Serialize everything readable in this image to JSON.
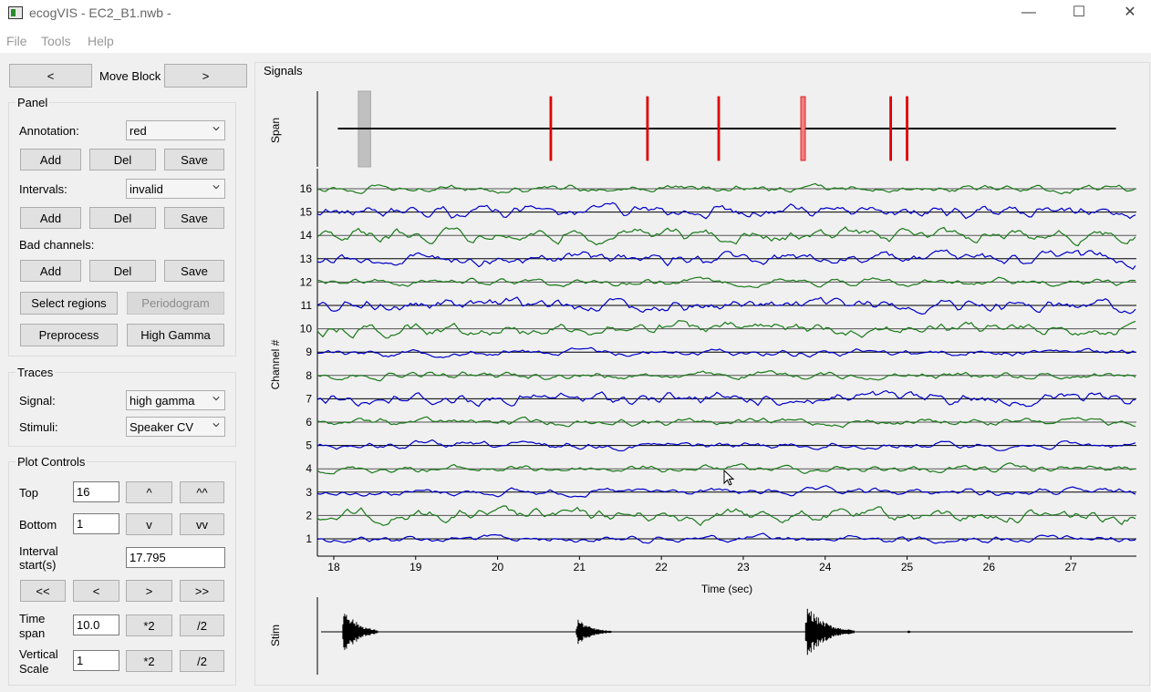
{
  "window": {
    "title": "ecogVIS - EC2_B1.nwb -",
    "minimize": "—",
    "maximize": "☐",
    "close": "✕"
  },
  "menu": [
    "File",
    "Tools",
    "Help"
  ],
  "nav": {
    "prev": "<",
    "label": "Move Block",
    "next": ">"
  },
  "panel": {
    "title": "Panel",
    "annotation_label": "Annotation:",
    "annotation_value": "red",
    "intervals_label": "Intervals:",
    "intervals_value": "invalid",
    "bad_channels_label": "Bad channels:",
    "add": "Add",
    "del": "Del",
    "save": "Save",
    "select_regions": "Select regions",
    "periodogram": "Periodogram",
    "preprocess": "Preprocess",
    "high_gamma": "High Gamma"
  },
  "traces": {
    "title": "Traces",
    "signal_label": "Signal:",
    "signal_value": "high gamma",
    "stimuli_label": "Stimuli:",
    "stimuli_value": "Speaker CV"
  },
  "plot_controls": {
    "title": "Plot Controls",
    "top_label": "Top",
    "top_value": "16",
    "up": "^",
    "up2": "^^",
    "bottom_label": "Bottom",
    "bottom_value": "1",
    "down": "v",
    "down2": "vv",
    "interval_label_1": "Interval",
    "interval_label_2": "start(s)",
    "interval_value": "17.795",
    "ff_back": "<<",
    "back": "<",
    "fwd": ">",
    "ff_fwd": ">>",
    "timespan_label_1": "Time",
    "timespan_label_2": "span",
    "timespan_value": "10.0",
    "times2": "*2",
    "div2": "/2",
    "vscale_label_1": "Vertical",
    "vscale_label_2": "Scale",
    "vscale_value": "1"
  },
  "signals": {
    "title": "Signals",
    "span_label": "Span",
    "stim_label": "Stim",
    "chart_data": {
      "type": "line",
      "xlabel": "Time (sec)",
      "ylabel": "Channel #",
      "xlim": [
        17.8,
        27.8
      ],
      "x_ticks": [
        18,
        19,
        20,
        21,
        22,
        23,
        24,
        25,
        26,
        27
      ],
      "channels": [
        1,
        2,
        3,
        4,
        5,
        6,
        7,
        8,
        9,
        10,
        11,
        12,
        13,
        14,
        15,
        16
      ],
      "channel_colors": {
        "odd": "#0000c8",
        "even": "#1a7a1a"
      },
      "baseline_colors": {
        "odd": "#000000",
        "even": "#555555"
      },
      "span_bar": {
        "x_range": [
          18.05,
          27.55
        ],
        "gray_window": [
          18.3,
          18.45
        ]
      },
      "annotation_marks": [
        20.65,
        21.83,
        22.7,
        23.73,
        24.8,
        25.0
      ],
      "stim_bursts": [
        18.1,
        20.95,
        23.75,
        25.0
      ]
    }
  },
  "colors": {
    "trace_blue": "#0000c8",
    "trace_green": "#1a7a1a",
    "annotation_red": "#e00000"
  },
  "icons": {
    "chevron": "chevron-down-icon",
    "app": "app-icon",
    "cursor": "cursor-icon"
  }
}
